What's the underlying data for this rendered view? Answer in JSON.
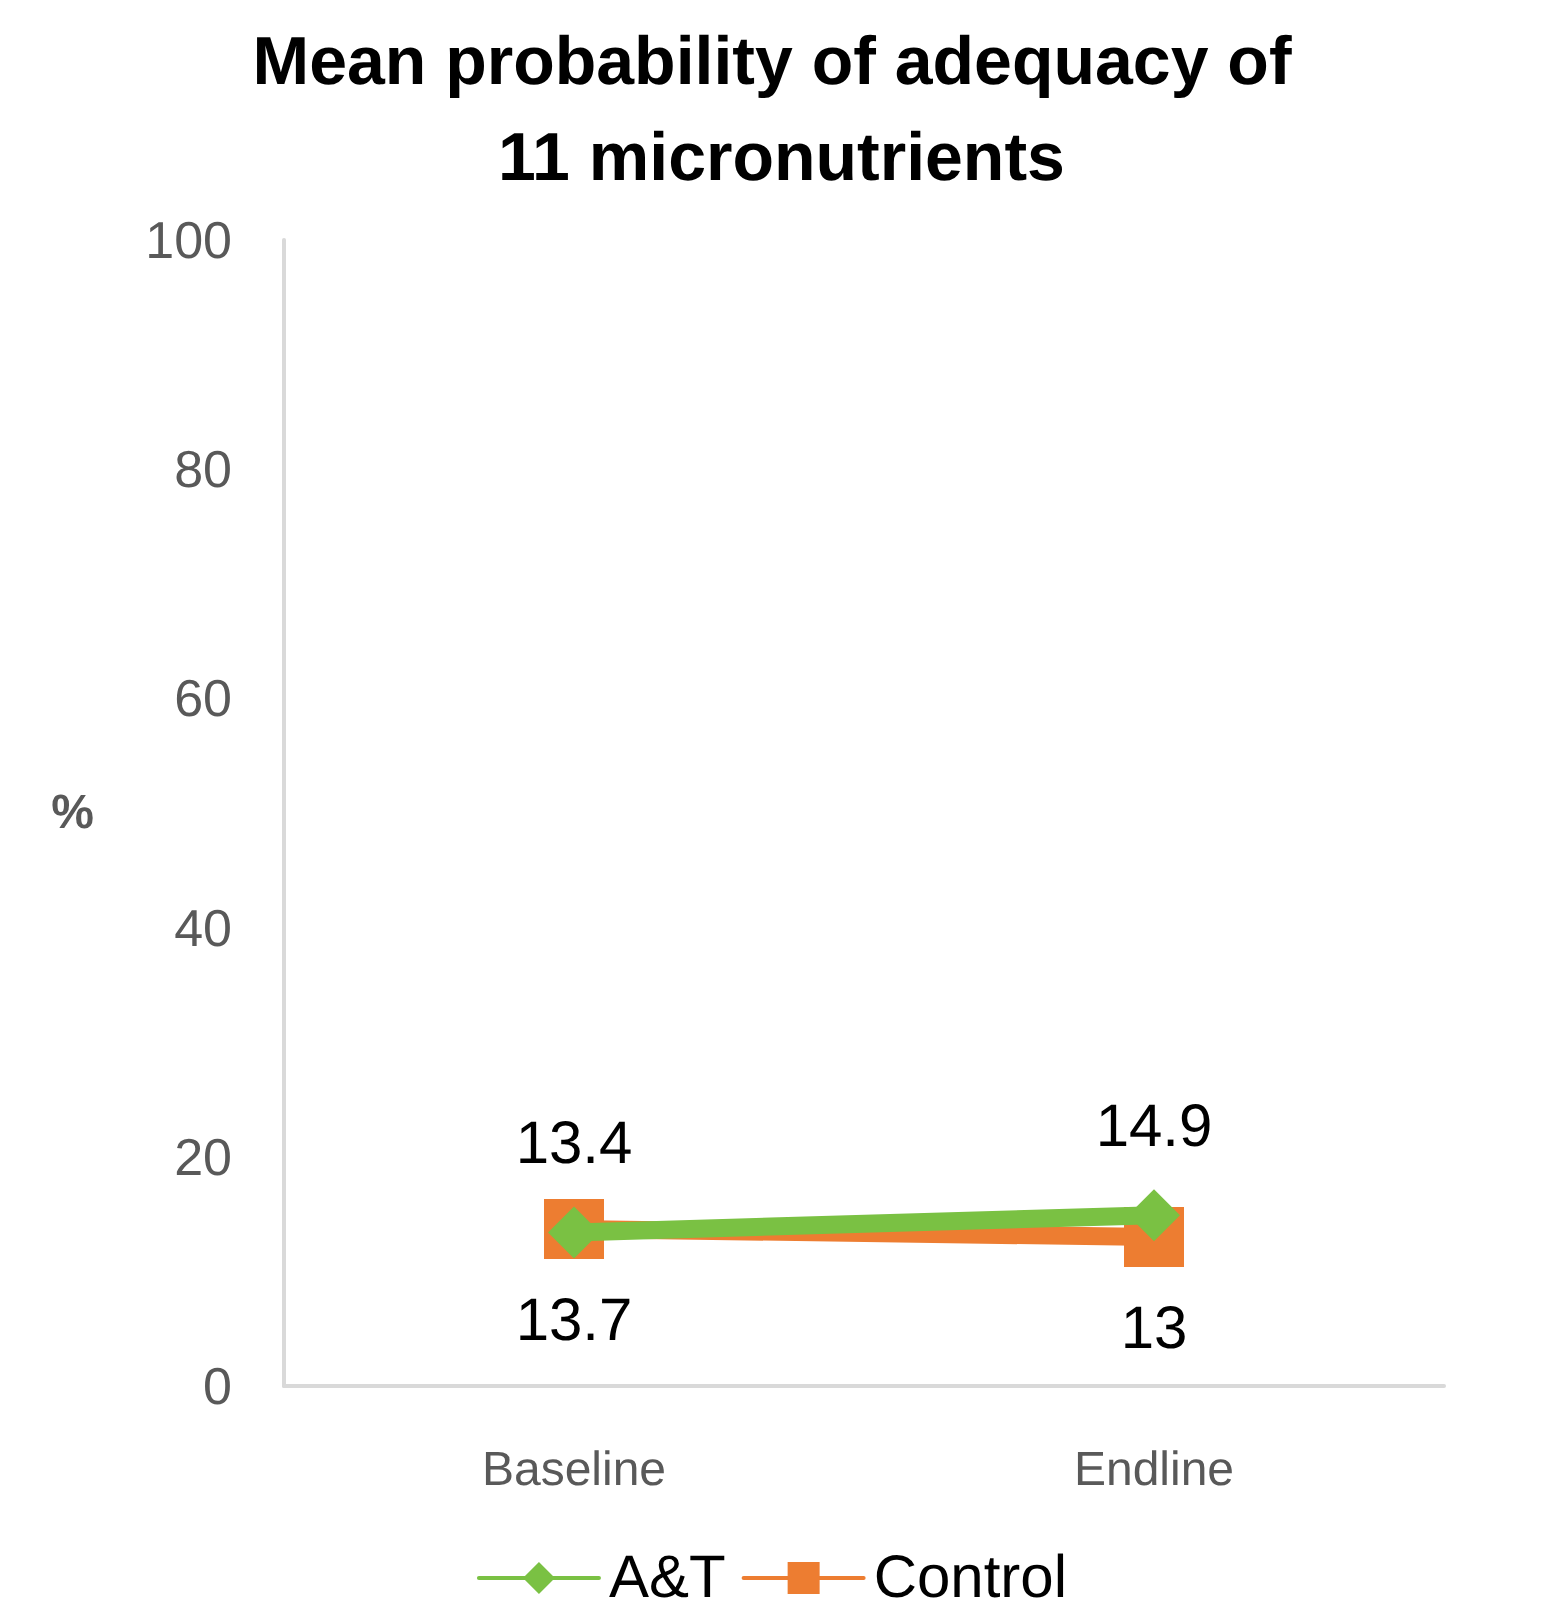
{
  "chart_data": {
    "type": "line",
    "title": "Mean probability of adequacy of 11 micronutrients",
    "ylabel": "%",
    "categories": [
      "Baseline",
      "Endline"
    ],
    "series": [
      {
        "name": "A&T",
        "color": "#7ac143",
        "values": [
          13.4,
          14.9
        ],
        "marker": "diamond"
      },
      {
        "name": "Control",
        "color": "#ed7d31",
        "values": [
          13.7,
          13
        ],
        "marker": "square"
      }
    ],
    "ylim": [
      0,
      100
    ],
    "yticks": [
      0,
      20,
      40,
      60,
      80,
      100
    ],
    "grid": false,
    "legend": "bottom",
    "data_labels": true,
    "line_style": "solid"
  }
}
